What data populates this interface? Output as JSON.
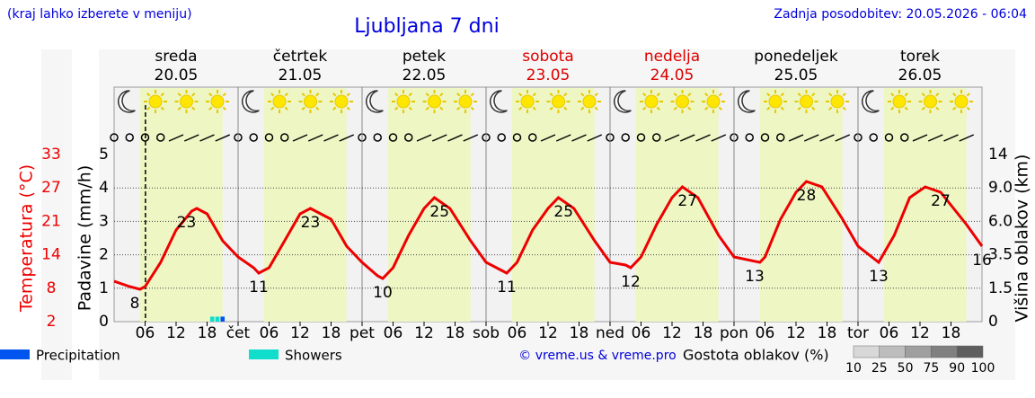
{
  "header": {
    "note": "(kraj lahko izberete v meniju)",
    "updated": "Zadnja posodobitev: 20.05.2026 - 06:04"
  },
  "chart_data": {
    "type": "line",
    "title": "Ljubljana 7 dni",
    "days": [
      {
        "name": "sreda",
        "date": "20.05",
        "color": "#000000"
      },
      {
        "name": "četrtek",
        "date": "21.05",
        "color": "#000000"
      },
      {
        "name": "petek",
        "date": "22.05",
        "color": "#000000"
      },
      {
        "name": "sobota",
        "date": "23.05",
        "color": "#dd0000"
      },
      {
        "name": "nedelja",
        "date": "24.05",
        "color": "#dd0000"
      },
      {
        "name": "ponedeljek",
        "date": "25.05",
        "color": "#000000"
      },
      {
        "name": "torek",
        "date": "26.05",
        "color": "#000000"
      }
    ],
    "xlim": [
      0,
      168
    ],
    "xticks": [
      {
        "value": 6,
        "label": "06"
      },
      {
        "value": 12,
        "label": "12"
      },
      {
        "value": 18,
        "label": "18"
      },
      {
        "value": 24,
        "label": "čet"
      },
      {
        "value": 30,
        "label": "06"
      },
      {
        "value": 36,
        "label": "12"
      },
      {
        "value": 42,
        "label": "18"
      },
      {
        "value": 48,
        "label": "pet"
      },
      {
        "value": 54,
        "label": "06"
      },
      {
        "value": 60,
        "label": "12"
      },
      {
        "value": 66,
        "label": "18"
      },
      {
        "value": 72,
        "label": "sob"
      },
      {
        "value": 78,
        "label": "06"
      },
      {
        "value": 84,
        "label": "12"
      },
      {
        "value": 90,
        "label": "18"
      },
      {
        "value": 96,
        "label": "ned"
      },
      {
        "value": 102,
        "label": "06"
      },
      {
        "value": 108,
        "label": "12"
      },
      {
        "value": 114,
        "label": "18"
      },
      {
        "value": 120,
        "label": "pon"
      },
      {
        "value": 126,
        "label": "06"
      },
      {
        "value": 132,
        "label": "12"
      },
      {
        "value": 138,
        "label": "18"
      },
      {
        "value": 144,
        "label": "tor"
      },
      {
        "value": 150,
        "label": "06"
      },
      {
        "value": 156,
        "label": "12"
      },
      {
        "value": 162,
        "label": "18"
      }
    ],
    "ylabel": "Padavine (mm/h)",
    "ylim": [
      0,
      5
    ],
    "yticks": [
      0,
      1,
      2,
      3,
      4,
      5
    ],
    "grid": true,
    "y2label": "Temperatura (°C)",
    "y2lim": [
      2,
      33
    ],
    "y2ticks": [
      2,
      {
        "value": 8.2,
        "label": "8"
      },
      {
        "value": 14.4,
        "label": "14"
      },
      {
        "value": 20.6,
        "label": "21"
      },
      {
        "value": 26.8,
        "label": "27"
      },
      33
    ],
    "y3label": "Višina oblakov (km)",
    "y3ticks": [
      0,
      1.5,
      3.5,
      {
        "value": 6,
        "label": "6.0"
      },
      {
        "value": 9,
        "label": "9.0"
      },
      14
    ],
    "daylight": {
      "start": 5,
      "end": 21,
      "color": "#eef6c4"
    },
    "now": 6.07,
    "series": [
      {
        "name": "Temperatura",
        "axis": "y2",
        "color": "#ee0000",
        "x": [
          0,
          3,
          5,
          6,
          9,
          12,
          15,
          16,
          18,
          21,
          24,
          27,
          28,
          30,
          33,
          36,
          38,
          42,
          45,
          48,
          51,
          52,
          54,
          57,
          60,
          62,
          65,
          69,
          72,
          75,
          76,
          78,
          81,
          84,
          86,
          89,
          93,
          96,
          99,
          100,
          102,
          105,
          108,
          110,
          113,
          117,
          120,
          124,
          125,
          126,
          129,
          132,
          134,
          137,
          141,
          144,
          148,
          151,
          154,
          157,
          160,
          165,
          168
        ],
        "values": [
          9.5,
          8.5,
          8,
          8.5,
          13,
          19,
          22.5,
          23,
          22,
          17,
          14,
          12,
          11,
          12,
          17,
          22,
          23,
          21,
          16,
          13,
          10.5,
          10,
          12,
          18,
          23,
          25,
          23,
          17,
          13,
          11.5,
          11,
          13,
          19,
          23,
          25,
          23,
          17,
          13,
          12.5,
          12,
          14,
          20,
          25,
          27,
          25,
          18,
          14,
          13.2,
          13,
          14,
          21,
          26,
          28,
          27,
          21,
          16,
          13,
          18,
          25,
          27,
          26,
          20,
          16
        ]
      },
      {
        "name": "Precipitation",
        "color": "#0055ee",
        "x": [
          21
        ],
        "values": [
          0.15
        ]
      },
      {
        "name": "Showers",
        "color": "#11ddcc",
        "x": [
          19,
          20
        ],
        "values": [
          0.15,
          0.15
        ]
      }
    ],
    "temp_labels": [
      {
        "x": 4,
        "value": 8
      },
      {
        "x": 14,
        "value": 23
      },
      {
        "x": 28,
        "value": 11
      },
      {
        "x": 38,
        "value": 23
      },
      {
        "x": 52,
        "value": 10
      },
      {
        "x": 63,
        "value": 25
      },
      {
        "x": 76,
        "value": 11
      },
      {
        "x": 87,
        "value": 25
      },
      {
        "x": 100,
        "value": 12
      },
      {
        "x": 111,
        "value": 27
      },
      {
        "x": 124,
        "value": 13
      },
      {
        "x": 134,
        "value": 28
      },
      {
        "x": 148,
        "value": 13
      },
      {
        "x": 160,
        "value": 27
      },
      {
        "x": 168,
        "value": 16
      }
    ],
    "credit": "© vreme.us & vreme.pro",
    "cloud_legend": {
      "title": "Gostota oblakov (%)",
      "levels": [
        10,
        25,
        50,
        75,
        90,
        100
      ]
    }
  }
}
